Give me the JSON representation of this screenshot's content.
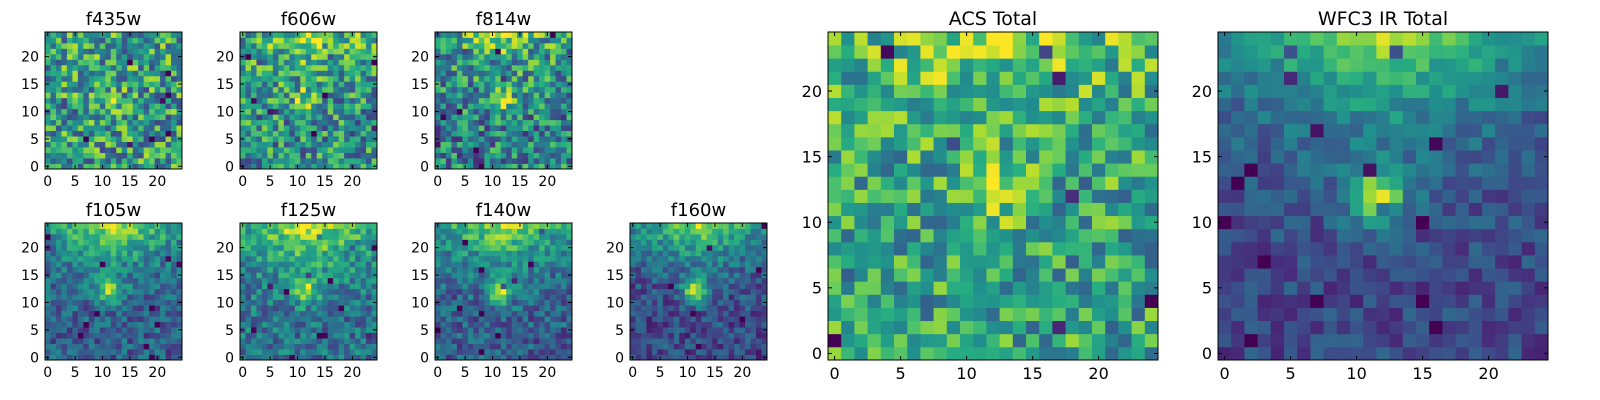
{
  "chart_data": [
    {
      "type": "heatmap",
      "title": "f435w",
      "grid_size": 25,
      "xticks": [
        0,
        5,
        10,
        15,
        20
      ],
      "yticks": [
        0,
        5,
        10,
        15,
        20
      ],
      "xlim": [
        0,
        25
      ],
      "ylim": [
        0,
        25
      ],
      "colormap": "viridis",
      "source_peak": [
        12,
        12
      ],
      "source_strength": 0.15,
      "top_glow": 0.05,
      "noise": 0.34,
      "base": 0.55
    },
    {
      "type": "heatmap",
      "title": "f606w",
      "grid_size": 25,
      "xticks": [
        0,
        5,
        10,
        15,
        20
      ],
      "yticks": [
        0,
        5,
        10,
        15,
        20
      ],
      "xlim": [
        0,
        25
      ],
      "ylim": [
        0,
        25
      ],
      "colormap": "viridis",
      "source_peak": [
        11.5,
        12
      ],
      "source_strength": 0.35,
      "top_glow": 0.3,
      "noise": 0.32,
      "base": 0.5
    },
    {
      "type": "heatmap",
      "title": "f814w",
      "grid_size": 25,
      "xticks": [
        0,
        5,
        10,
        15,
        20
      ],
      "yticks": [
        0,
        5,
        10,
        15,
        20
      ],
      "xlim": [
        0,
        25
      ],
      "ylim": [
        0,
        25
      ],
      "colormap": "viridis",
      "source_peak": [
        11.5,
        12
      ],
      "source_strength": 0.4,
      "top_glow": 0.3,
      "noise": 0.32,
      "base": 0.45
    },
    {
      "type": "heatmap",
      "title": "f105w",
      "grid_size": 25,
      "xticks": [
        0,
        5,
        10,
        15,
        20
      ],
      "yticks": [
        0,
        5,
        10,
        15,
        20
      ],
      "xlim": [
        0,
        25
      ],
      "ylim": [
        0,
        25
      ],
      "colormap": "viridis",
      "source_peak": [
        11.5,
        12
      ],
      "source_strength": 0.55,
      "top_glow": 0.6,
      "noise": 0.18,
      "base": 0.3
    },
    {
      "type": "heatmap",
      "title": "f125w",
      "grid_size": 25,
      "xticks": [
        0,
        5,
        10,
        15,
        20
      ],
      "yticks": [
        0,
        5,
        10,
        15,
        20
      ],
      "xlim": [
        0,
        25
      ],
      "ylim": [
        0,
        25
      ],
      "colormap": "viridis",
      "source_peak": [
        11.5,
        12
      ],
      "source_strength": 0.45,
      "top_glow": 0.6,
      "noise": 0.2,
      "base": 0.38
    },
    {
      "type": "heatmap",
      "title": "f140w",
      "grid_size": 25,
      "xticks": [
        0,
        5,
        10,
        15,
        20
      ],
      "yticks": [
        0,
        5,
        10,
        15,
        20
      ],
      "xlim": [
        0,
        25
      ],
      "ylim": [
        0,
        25
      ],
      "colormap": "viridis",
      "source_peak": [
        11.5,
        12
      ],
      "source_strength": 0.55,
      "top_glow": 0.6,
      "noise": 0.18,
      "base": 0.3
    },
    {
      "type": "heatmap",
      "title": "f160w",
      "grid_size": 25,
      "xticks": [
        0,
        5,
        10,
        15,
        20
      ],
      "yticks": [
        0,
        5,
        10,
        15,
        20
      ],
      "xlim": [
        0,
        25
      ],
      "ylim": [
        0,
        25
      ],
      "colormap": "viridis",
      "source_peak": [
        11.5,
        12
      ],
      "source_strength": 0.6,
      "top_glow": 0.65,
      "noise": 0.16,
      "base": 0.22
    },
    {
      "type": "heatmap",
      "title": "ACS Total",
      "grid_size": 25,
      "xticks": [
        0,
        5,
        10,
        15,
        20
      ],
      "yticks": [
        0,
        5,
        10,
        15,
        20
      ],
      "xlim": [
        0,
        25
      ],
      "ylim": [
        0,
        25
      ],
      "colormap": "viridis",
      "source_peak": [
        11.5,
        12
      ],
      "source_strength": 0.3,
      "top_glow": 0.25,
      "noise": 0.28,
      "base": 0.58
    },
    {
      "type": "heatmap",
      "title": "WFC3 IR Total",
      "grid_size": 25,
      "xticks": [
        0,
        5,
        10,
        15,
        20
      ],
      "yticks": [
        0,
        5,
        10,
        15,
        20
      ],
      "xlim": [
        0,
        25
      ],
      "ylim": [
        0,
        25
      ],
      "colormap": "viridis",
      "source_peak": [
        11.5,
        12
      ],
      "source_strength": 0.6,
      "top_glow": 0.65,
      "noise": 0.12,
      "base": 0.22
    }
  ]
}
